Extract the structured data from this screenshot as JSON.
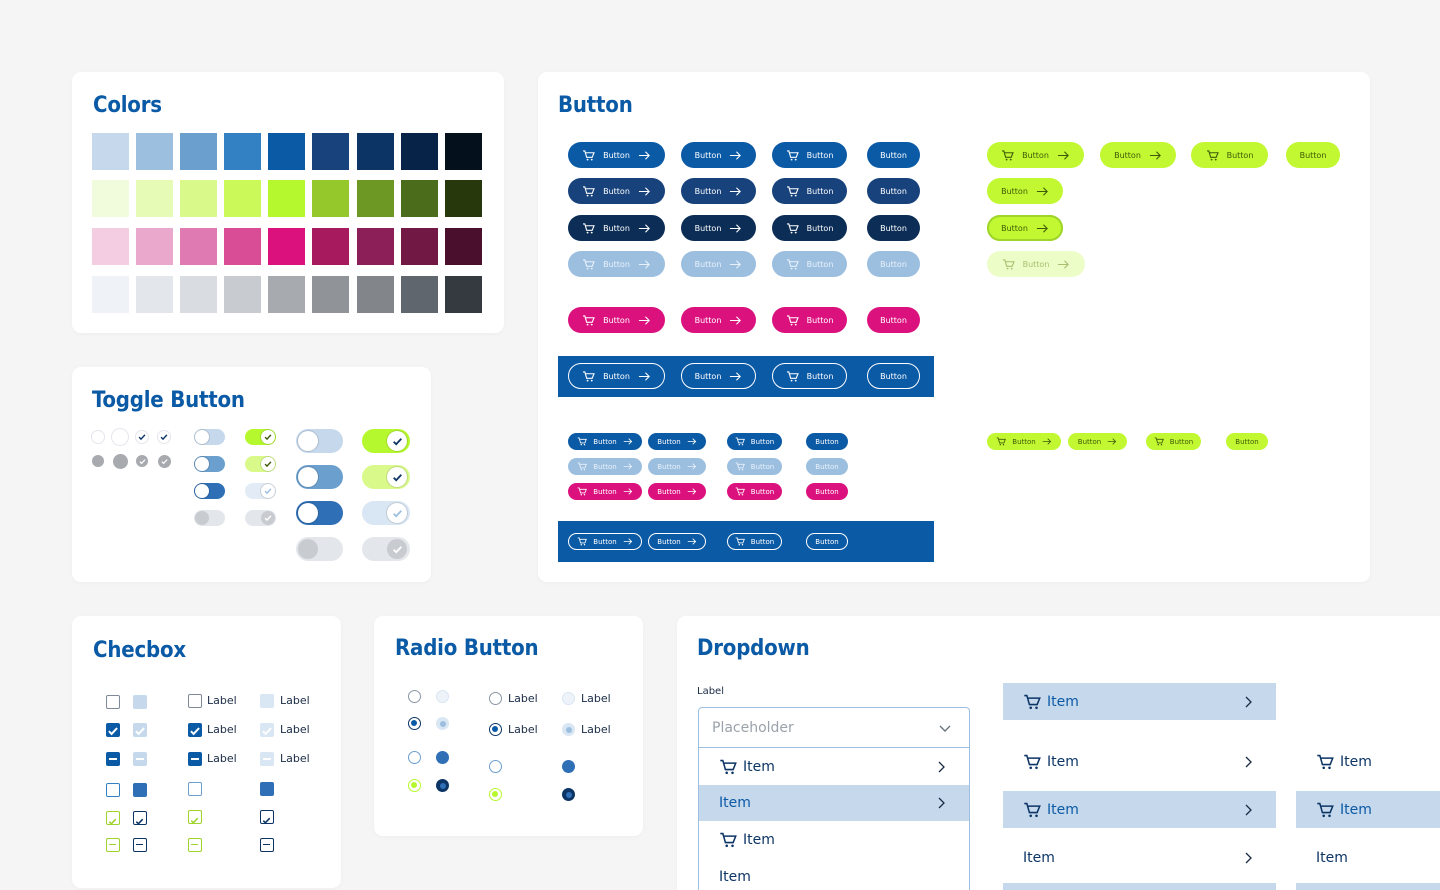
{
  "colors": {
    "title": "Colors",
    "rows": [
      [
        "#c6d8ec",
        "#9cbfe0",
        "#6a9fce",
        "#3380c2",
        "#0a5aa6",
        "#18427c",
        "#0c3566",
        "#072348",
        "#04101c"
      ],
      [
        "#f1fcdc",
        "#e6fbb6",
        "#d9fa8a",
        "#cbf95a",
        "#b6f82e",
        "#94c82b",
        "#6c9823",
        "#4a6c1b",
        "#27390c"
      ],
      [
        "#f5cde2",
        "#eaa8cd",
        "#e07ab3",
        "#d94d97",
        "#db127e",
        "#a81a5e",
        "#8c1f57",
        "#711845",
        "#4a0f2d"
      ],
      [
        "#eff2f7",
        "#e3e6eb",
        "#d9dce1",
        "#c8ccd1",
        "#a7aaaf",
        "#909398",
        "#82858a",
        "#5f666e",
        "#343a40"
      ]
    ]
  },
  "button": {
    "title": "Button",
    "label": "Button"
  },
  "toggle": {
    "title": "Toggle Button"
  },
  "checkbox": {
    "title": "Checbox",
    "label": "Label"
  },
  "radio": {
    "title": "Radio Button",
    "label": "Label"
  },
  "dropdown": {
    "title": "Dropdown",
    "field_label": "Label",
    "placeholder": "Placeholder",
    "item": "Item"
  },
  "palette": {
    "blue": "#0b5aa6",
    "navy": "#18427c",
    "darknavy": "#0c2e56",
    "lightblue": "#9cbfe0",
    "pink": "#db127e",
    "lime": "#c1f832",
    "selected_bg": "#c6d8ec"
  }
}
